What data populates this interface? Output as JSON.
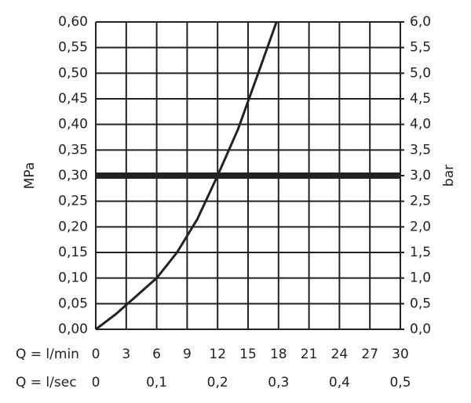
{
  "chart_data": {
    "type": "line",
    "x": [
      0,
      2,
      4,
      6,
      8,
      10,
      12,
      14,
      16,
      17.8
    ],
    "series": [
      {
        "color": "#222222",
        "values": [
          0,
          0.03,
          0.065,
          0.1,
          0.15,
          0.215,
          0.3,
          0.39,
          0.5,
          0.6
        ]
      }
    ],
    "reference_line": 0.3,
    "drop_line": {
      "x": 12,
      "y": 0.3
    },
    "xlabel": "Q = l/min",
    "x2label": "Q = l/sec",
    "ylabel": "MPa",
    "y2label": "bar",
    "xlim": [
      0,
      30
    ],
    "xticks": [
      0,
      3,
      6,
      9,
      12,
      15,
      18,
      21,
      24,
      27,
      30
    ],
    "x2lim": [
      0,
      0.5
    ],
    "x2ticks": [
      0,
      {
        "value": 0.1,
        "label": "0,1"
      },
      {
        "value": 0.2,
        "label": "0,2"
      },
      {
        "value": 0.3,
        "label": "0,3"
      },
      {
        "value": 0.4,
        "label": "0,4"
      },
      {
        "value": 0.5,
        "label": "0,5"
      }
    ],
    "ylim": [
      0,
      0.6
    ],
    "yticks": [
      {
        "value": 0,
        "label": "0,00"
      },
      {
        "value": 0.05,
        "label": "0,05"
      },
      {
        "value": 0.1,
        "label": "0,10"
      },
      {
        "value": 0.15,
        "label": "0,15"
      },
      {
        "value": 0.2,
        "label": "0,20"
      },
      {
        "value": 0.25,
        "label": "0,25"
      },
      {
        "value": 0.3,
        "label": "0,30"
      },
      {
        "value": 0.35,
        "label": "0,35"
      },
      {
        "value": 0.4,
        "label": "0,40"
      },
      {
        "value": 0.45,
        "label": "0,45"
      },
      {
        "value": 0.5,
        "label": "0,50"
      },
      {
        "value": 0.55,
        "label": "0,55"
      },
      {
        "value": 0.6,
        "label": "0,60"
      }
    ],
    "y2lim": [
      0,
      6
    ],
    "y2ticks": [
      {
        "value": 0,
        "label": "0,0"
      },
      {
        "value": 0.5,
        "label": "0,5"
      },
      {
        "value": 1,
        "label": "1,0"
      },
      {
        "value": 1.5,
        "label": "1,5"
      },
      {
        "value": 2,
        "label": "2,0"
      },
      {
        "value": 2.5,
        "label": "2,5"
      },
      {
        "value": 3,
        "label": "3,0"
      },
      {
        "value": 3.5,
        "label": "3,5"
      },
      {
        "value": 4,
        "label": "4,0"
      },
      {
        "value": 4.5,
        "label": "4,5"
      },
      {
        "value": 5,
        "label": "5,0"
      },
      {
        "value": 5.5,
        "label": "5,5"
      },
      {
        "value": 6,
        "label": "6,0"
      }
    ],
    "grid": true
  }
}
